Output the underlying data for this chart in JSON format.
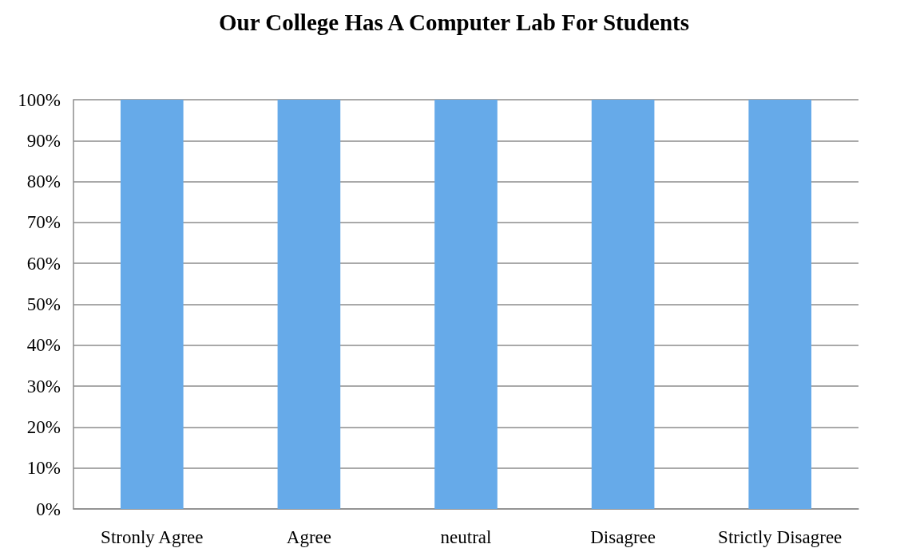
{
  "chart_data": {
    "type": "bar",
    "title": "Our College Has A Computer Lab For Students",
    "categories": [
      "Stronly Agree",
      "Agree",
      "neutral",
      "Disagree",
      "Strictly Disagree"
    ],
    "values": [
      100,
      100,
      100,
      100,
      100
    ],
    "color": "#66aae9",
    "ylim": [
      0,
      100
    ],
    "yticks": [
      {
        "value": 0,
        "label": "0%"
      },
      {
        "value": 10,
        "label": "10%"
      },
      {
        "value": 20,
        "label": "20%"
      },
      {
        "value": 30,
        "label": "30%"
      },
      {
        "value": 40,
        "label": "40%"
      },
      {
        "value": 50,
        "label": "50%"
      },
      {
        "value": 60,
        "label": "60%"
      },
      {
        "value": 70,
        "label": "70%"
      },
      {
        "value": 80,
        "label": "80%"
      },
      {
        "value": 90,
        "label": "90%"
      },
      {
        "value": 100,
        "label": "100%"
      }
    ],
    "grid": "y"
  }
}
